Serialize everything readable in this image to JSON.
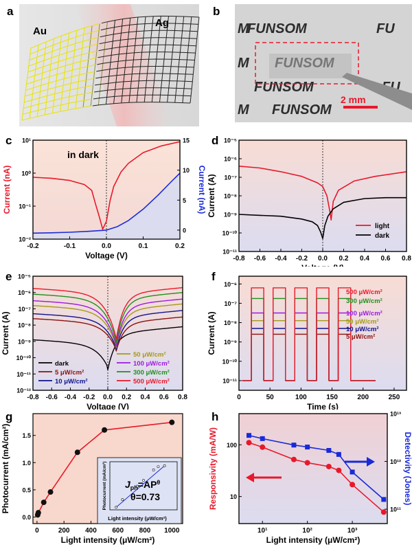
{
  "panel_letters": {
    "a": "a",
    "b": "b",
    "c": "c",
    "d": "d",
    "e": "e",
    "f": "f",
    "g": "g",
    "h": "h"
  },
  "panel_a": {
    "left_label": "Au",
    "right_label": "Ag"
  },
  "panel_b": {
    "word": "FUNSOM",
    "word_cut": "FU",
    "word_cut_left": "M",
    "scale_label": "2 mm"
  },
  "colors": {
    "red": "#e8182a",
    "blue": "#1a2ad8",
    "black": "#000000",
    "olive": "#a39a1a",
    "purple": "#9a1ae0",
    "green": "#1f8f1f",
    "darkred": "#8a1010",
    "navy": "#10128a"
  },
  "chart_data": [
    {
      "id": "c",
      "type": "line",
      "annotation": "in dark",
      "xlabel": "Voltage (V)",
      "ylabel": "Current (nA)",
      "y2label": "Current (nA)",
      "xlim": [
        -0.2,
        0.2
      ],
      "xticks": [
        "-0.2",
        "-0.1",
        "0.0",
        "0.1",
        "0.2"
      ],
      "ylim_log": [
        0.01,
        10
      ],
      "yticks_log": [
        "10⁻²",
        "10⁻¹",
        "10⁰",
        "10¹"
      ],
      "y2lim": [
        -1.5,
        15
      ],
      "y2ticks": [
        "0",
        "5",
        "10",
        "15"
      ],
      "series": [
        {
          "axis": "left-log",
          "color": "red",
          "x": [
            -0.2,
            -0.15,
            -0.1,
            -0.06,
            -0.04,
            -0.03,
            -0.02,
            -0.01,
            0.0,
            0.01,
            0.02,
            0.04,
            0.06,
            0.1,
            0.15,
            0.2
          ],
          "y": [
            0.75,
            0.7,
            0.6,
            0.45,
            0.3,
            0.12,
            0.05,
            0.02,
            0.035,
            0.15,
            0.4,
            1.1,
            2.0,
            4.2,
            6.7,
            9.0
          ]
        },
        {
          "axis": "right-linear",
          "color": "blue",
          "x": [
            -0.2,
            -0.15,
            -0.1,
            -0.05,
            0.0,
            0.03,
            0.06,
            0.1,
            0.14,
            0.18,
            0.2
          ],
          "y": [
            -0.5,
            -0.45,
            -0.35,
            -0.2,
            0.0,
            0.6,
            1.6,
            3.5,
            5.8,
            8.3,
            9.5
          ]
        }
      ]
    },
    {
      "id": "d",
      "type": "line",
      "xlabel": "Voltage (V)",
      "ylabel": "Current (A)",
      "xlim": [
        -0.8,
        0.8
      ],
      "xticks": [
        "-0.8",
        "-0.6",
        "-0.4",
        "-0.2",
        "0.0",
        "0.2",
        "0.4",
        "0.6",
        "0.8"
      ],
      "ylim_exp": [
        -11,
        -5
      ],
      "yticks": [
        "10⁻⁵",
        "10⁻⁶",
        "10⁻⁷",
        "10⁻⁸",
        "10⁻⁹",
        "10⁻¹⁰",
        "10⁻¹¹"
      ],
      "series": [
        {
          "name": "light",
          "color": "red",
          "x": [
            -0.8,
            -0.6,
            -0.4,
            -0.2,
            -0.05,
            0.0,
            0.04,
            0.07,
            0.08,
            0.1,
            0.15,
            0.3,
            0.5,
            0.8
          ],
          "logy": [
            -6.4,
            -6.5,
            -6.7,
            -6.95,
            -7.3,
            -7.5,
            -8.0,
            -8.9,
            -9.3,
            -8.3,
            -7.7,
            -7.2,
            -6.95,
            -6.7
          ]
        },
        {
          "name": "dark",
          "color": "black",
          "x": [
            -0.8,
            -0.6,
            -0.4,
            -0.2,
            -0.1,
            -0.05,
            -0.02,
            0.0,
            0.02,
            0.05,
            0.1,
            0.2,
            0.4,
            0.6,
            0.8
          ],
          "logy": [
            -9.0,
            -9.05,
            -9.1,
            -9.25,
            -9.4,
            -9.6,
            -9.95,
            -10.3,
            -9.6,
            -9.1,
            -8.7,
            -8.35,
            -8.15,
            -8.1,
            -8.1
          ]
        }
      ]
    },
    {
      "id": "e",
      "type": "line",
      "xlabel": "Voltage (V)",
      "ylabel": "Current (A)",
      "xlim": [
        -0.8,
        0.8
      ],
      "xticks": [
        "-0.8",
        "-0.6",
        "-0.4",
        "-0.2",
        "0.0",
        "0.2",
        "0.4",
        "0.6",
        "0.8"
      ],
      "ylim_exp": [
        -12,
        -5
      ],
      "yticks": [
        "10⁻⁵",
        "10⁻⁶",
        "10⁻⁷",
        "10⁻⁸",
        "10⁻⁹",
        "10⁻¹⁰",
        "10⁻¹¹",
        "10⁻¹²"
      ],
      "series": [
        {
          "name": "dark",
          "color": "black",
          "end": -8.9,
          "dip": -10.3,
          "dipx": 0.0,
          "right": -8.1
        },
        {
          "name": "5 μW/cm²",
          "color": "darkred",
          "end": -7.6,
          "dip": -9.2,
          "dipx": 0.09,
          "right": -7.5
        },
        {
          "name": "10 μW/cm²",
          "color": "navy",
          "end": -7.3,
          "dip": -9.1,
          "dipx": 0.09,
          "right": -7.1
        },
        {
          "name": "50 μW/cm²",
          "color": "olive",
          "end": -6.8,
          "dip": -9.0,
          "dipx": 0.09,
          "right": -6.7
        },
        {
          "name": "100 μW/cm²",
          "color": "purple",
          "end": -6.5,
          "dip": -8.9,
          "dipx": 0.09,
          "right": -6.4
        },
        {
          "name": "300 μW/cm²",
          "color": "green",
          "end": -6.1,
          "dip": -8.7,
          "dipx": 0.09,
          "right": -6.0
        },
        {
          "name": "500 μW/cm²",
          "color": "red",
          "end": -5.75,
          "dip": -8.5,
          "dipx": 0.09,
          "right": -5.7
        }
      ]
    },
    {
      "id": "f",
      "type": "line",
      "xlabel": "Time (s)",
      "ylabel": "Current (A)",
      "xlim": [
        0,
        270
      ],
      "xticks": [
        "0",
        "50",
        "100",
        "150",
        "200",
        "250"
      ],
      "ylim_exp": [
        -11.5,
        -5.6
      ],
      "yticks": [
        "10⁻⁶",
        "10⁻⁷",
        "10⁻⁸",
        "10⁻⁹",
        "10⁻¹⁰",
        "10⁻¹¹"
      ],
      "on_intervals": [
        [
          20,
          40
        ],
        [
          55,
          75
        ],
        [
          90,
          110
        ],
        [
          125,
          145
        ],
        [
          160,
          180
        ]
      ],
      "off_level": -11.0,
      "series": [
        {
          "name": "500 μW/cm²",
          "color": "red",
          "on": -6.2
        },
        {
          "name": "300 μW/cm²",
          "color": "green",
          "on": -6.75
        },
        {
          "name": "100 μW/cm²",
          "color": "purple",
          "on": -7.5
        },
        {
          "name": "50 μW/cm²",
          "color": "olive",
          "on": -7.9
        },
        {
          "name": "10 μW/cm²",
          "color": "navy",
          "on": -8.3
        },
        {
          "name": "5 μW/cm²",
          "color": "darkred",
          "on": -8.6
        }
      ],
      "legend": [
        "500 μW/cm²",
        "300 μW/cm²",
        "100 μW/cm²",
        "50 μW/cm²",
        "10 μW/cm²",
        "5 μW/cm²"
      ]
    },
    {
      "id": "g",
      "type": "line",
      "xlabel": "Light intensity (μW/cm²)",
      "ylabel": "Photocurrent (mA/cm²)",
      "xlim": [
        -30,
        1080
      ],
      "xticks": [
        "0",
        "200",
        "400",
        "600",
        "800",
        "1000"
      ],
      "ylim": [
        -0.12,
        1.9
      ],
      "yticks": [
        "0.0",
        "0.5",
        "1.0",
        "1.5"
      ],
      "x": [
        5,
        10,
        50,
        100,
        300,
        500,
        1000
      ],
      "y": [
        0.04,
        0.08,
        0.27,
        0.46,
        1.19,
        1.6,
        1.74
      ],
      "inset": {
        "xlabel": "Light intensity (μW/cm²)",
        "ylabel": "Photocurrent (mA/cm²)",
        "formula_lhs": "J",
        "formula_sub": "ph",
        "formula_mid": "=AP",
        "formula_sup": "θ",
        "theta_text": "θ=0.73"
      }
    },
    {
      "id": "h",
      "type": "line",
      "xlabel": "Light intensity (μW/cm²)",
      "ylabel": "Responsivity (mA/W)",
      "y2label": "Detectivity (Jones)",
      "xlim_log": [
        3,
        6000
      ],
      "xticks": [
        "10¹",
        "10²",
        "10³"
      ],
      "ylim_log": [
        3,
        400
      ],
      "yticks": [
        "10",
        "100"
      ],
      "y2lim_log": [
        50000000000.0,
        10000000000000.0
      ],
      "y2ticks": [
        "10¹¹",
        "10¹²",
        "10¹³"
      ],
      "x": [
        5,
        10,
        50,
        100,
        300,
        500,
        1000,
        5000
      ],
      "responsivity": [
        110,
        90,
        52,
        45,
        38,
        32,
        17,
        5
      ],
      "detectivity": [
        3500000000000.0,
        3000000000000.0,
        2200000000000.0,
        2000000000000.0,
        1700000000000.0,
        1400000000000.0,
        600000000000.0,
        160000000000.0
      ]
    }
  ]
}
